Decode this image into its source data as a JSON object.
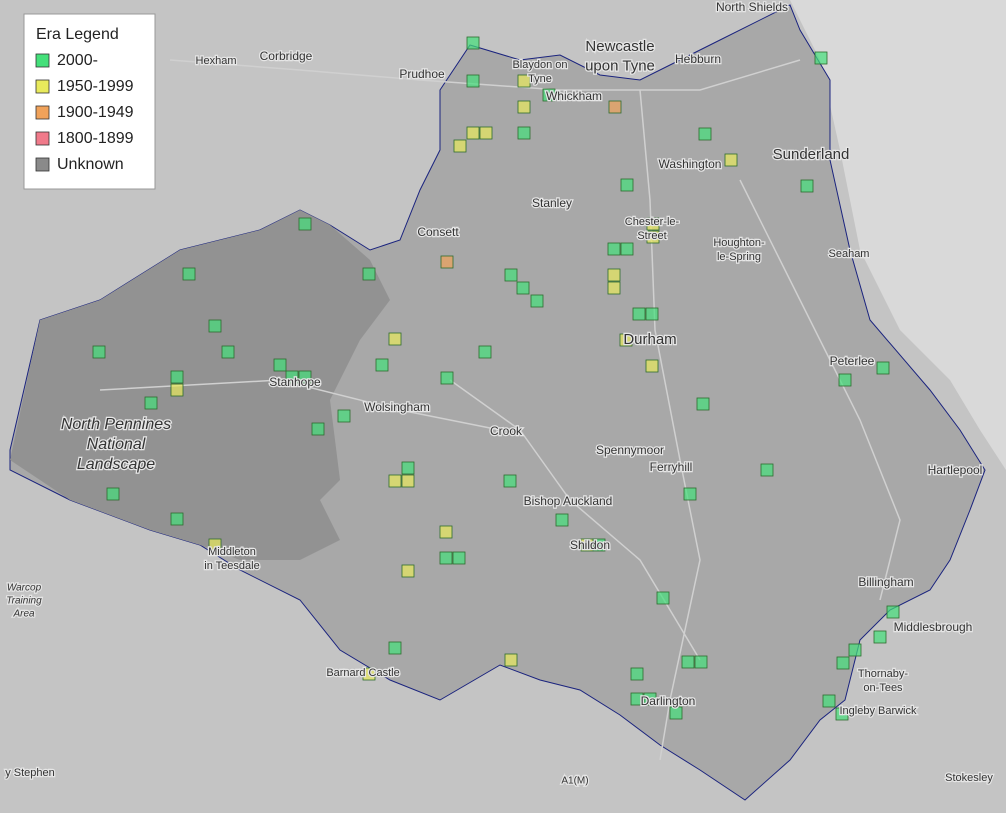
{
  "legend": {
    "title": "Era Legend",
    "items": [
      {
        "label": "2000-",
        "color": "#44e07a"
      },
      {
        "label": "1950-1999",
        "color": "#e8ea5c"
      },
      {
        "label": "1900-1949",
        "color": "#f0a25a"
      },
      {
        "label": "1800-1899",
        "color": "#f07a8a"
      },
      {
        "label": "Unknown",
        "color": "#8a8a8a"
      }
    ]
  },
  "places": [
    {
      "lines": [
        "North Shields"
      ]
    },
    {
      "lines": [
        "Newcastle",
        "upon Tyne"
      ]
    },
    {
      "lines": [
        "Hebburn"
      ]
    },
    {
      "lines": [
        "Hexham"
      ]
    },
    {
      "lines": [
        "Corbridge"
      ]
    },
    {
      "lines": [
        "Prudhoe"
      ]
    },
    {
      "lines": [
        "Blaydon on",
        "Tyne"
      ]
    },
    {
      "lines": [
        "Whickham"
      ]
    },
    {
      "lines": [
        "Sunderland"
      ]
    },
    {
      "lines": [
        "Washington"
      ]
    },
    {
      "lines": [
        "Stanley"
      ]
    },
    {
      "lines": [
        "Consett"
      ]
    },
    {
      "lines": [
        "Chester-le-",
        "Street"
      ]
    },
    {
      "lines": [
        "Houghton-",
        "le-Spring"
      ]
    },
    {
      "lines": [
        "Seaham"
      ]
    },
    {
      "lines": [
        "Durham"
      ]
    },
    {
      "lines": [
        "Peterlee"
      ]
    },
    {
      "lines": [
        "Stanhope"
      ]
    },
    {
      "lines": [
        "Wolsingham"
      ]
    },
    {
      "lines": [
        "North Pennines",
        "National",
        "Landscape"
      ]
    },
    {
      "lines": [
        "Crook"
      ]
    },
    {
      "lines": [
        "Spennymoor"
      ]
    },
    {
      "lines": [
        "Ferryhill"
      ]
    },
    {
      "lines": [
        "Hartlepool"
      ]
    },
    {
      "lines": [
        "Bishop Auckland"
      ]
    },
    {
      "lines": [
        "Shildon"
      ]
    },
    {
      "lines": [
        "Middleton",
        "in Teesdale"
      ]
    },
    {
      "lines": [
        "Warcop",
        "Training",
        "Area"
      ]
    },
    {
      "lines": [
        "Billingham"
      ]
    },
    {
      "lines": [
        "Middlesbrough"
      ]
    },
    {
      "lines": [
        "Thornaby-",
        "on-Tees"
      ]
    },
    {
      "lines": [
        "Barnard Castle"
      ]
    },
    {
      "lines": [
        "Darlington"
      ]
    },
    {
      "lines": [
        "Ingleby Barwick"
      ]
    },
    {
      "lines": [
        "A1(M)"
      ]
    },
    {
      "lines": [
        "Stokesley"
      ]
    },
    {
      "lines": [
        "y Stephen"
      ]
    }
  ]
}
